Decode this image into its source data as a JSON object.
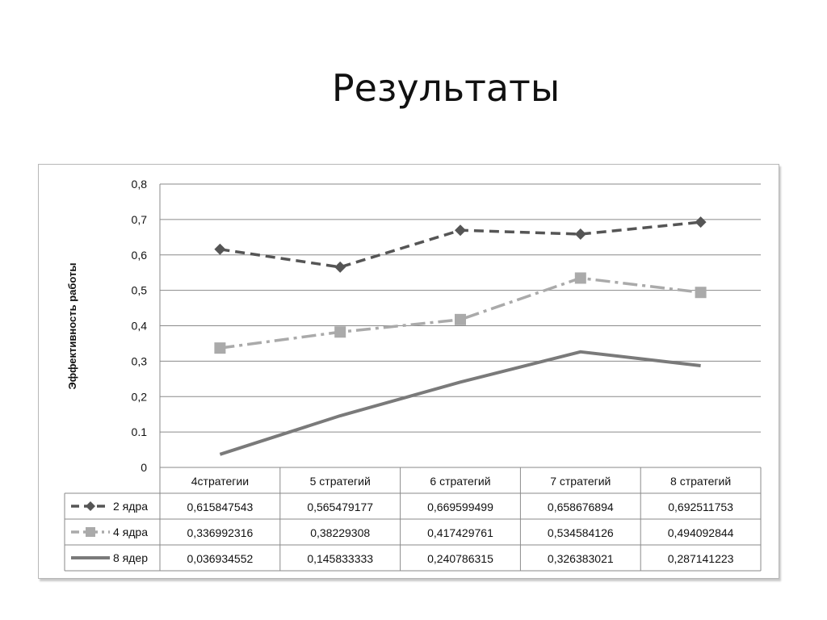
{
  "slide": {
    "title": "Результаты"
  },
  "chart_data": {
    "type": "line",
    "ylabel": "Эффективность работы",
    "ylim": [
      0,
      0.8
    ],
    "yticks": [
      "0",
      "0.1",
      "0,2",
      "0,3",
      "0,4",
      "0,5",
      "0,6",
      "0,7",
      "0,8"
    ],
    "grid": true,
    "legend": "table-left",
    "categories": [
      "4стратегии",
      "5  стратегий",
      "6  стратегий",
      "7  стратегий",
      "8  стратегий"
    ],
    "series": [
      {
        "name": "2 ядра",
        "values": [
          0.615847543,
          0.565479177,
          0.669599499,
          0.658676894,
          0.692511753
        ],
        "labels": [
          "0,615847543",
          "0,565479177",
          "0,669599499",
          "0,658676894",
          "0,692511753"
        ],
        "color": "#555555",
        "marker": "diamond",
        "dash": "dashed"
      },
      {
        "name": "4 ядра",
        "values": [
          0.336992316,
          0.38229308,
          0.417429761,
          0.534584126,
          0.494092844
        ],
        "labels": [
          "0,336992316",
          "0,38229308",
          "0,417429761",
          "0,534584126",
          "0,494092844"
        ],
        "color": "#aaaaaa",
        "marker": "square",
        "dash": "dash-dot"
      },
      {
        "name": "8 ядер",
        "values": [
          0.036934552,
          0.145833333,
          0.240786315,
          0.326383021,
          0.287141223
        ],
        "labels": [
          "0,036934552",
          "0,145833333",
          "0,240786315",
          "0,326383021",
          "0,287141223"
        ],
        "color": "#7a7a7a",
        "marker": "none",
        "dash": "solid"
      }
    ]
  }
}
